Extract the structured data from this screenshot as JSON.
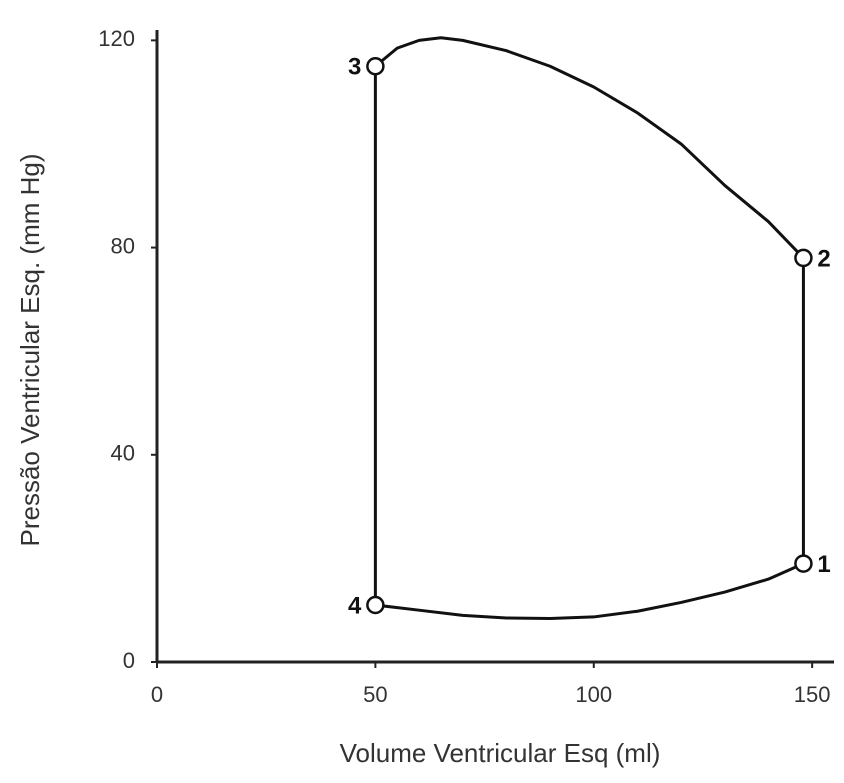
{
  "chart_data": {
    "type": "line",
    "x_label": "Volume Ventricular Esq (ml)",
    "y_label": "Pressão Ventricular Esq.  (mm Hg)",
    "xlim": [
      0,
      155
    ],
    "ylim": [
      0,
      122
    ],
    "xticks": [
      0,
      50,
      100,
      150
    ],
    "yticks": [
      0,
      40,
      80,
      120
    ],
    "x": [
      50,
      60,
      70,
      80,
      90,
      100,
      110,
      120,
      130,
      140,
      148,
      148,
      140,
      130,
      120,
      110,
      100,
      90,
      80,
      70,
      65,
      60,
      55,
      50,
      50
    ],
    "series": [
      {
        "color": "#111111",
        "values": [
          11,
          10,
          9,
          8.5,
          8.4,
          8.7,
          9.8,
          11.5,
          13.5,
          16,
          19,
          78,
          85,
          92,
          100,
          106,
          111,
          115,
          118,
          120,
          120.5,
          120,
          118.5,
          115,
          11
        ]
      }
    ],
    "points": [
      {
        "label": "1",
        "x": 148,
        "y": 19
      },
      {
        "label": "2",
        "x": 148,
        "y": 78
      },
      {
        "label": "3",
        "x": 50,
        "y": 115
      },
      {
        "label": "4",
        "x": 50,
        "y": 11
      }
    ]
  }
}
